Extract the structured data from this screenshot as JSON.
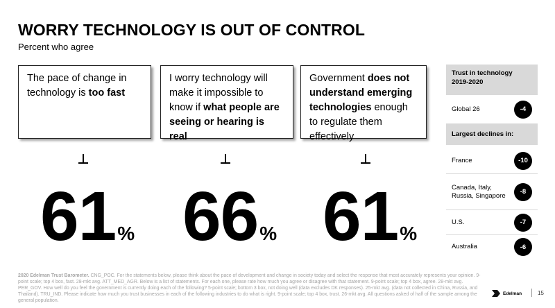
{
  "header": {
    "title": "WORRY TECHNOLOGY IS OUT OF CONTROL",
    "subtitle": "Percent who agree"
  },
  "cards": [
    {
      "pre": "The pace of change in technology is ",
      "bold": "too fast",
      "post": ""
    },
    {
      "pre": "I worry technology will make it impossible to know if ",
      "bold": "what people are seeing or hearing is real",
      "post": ""
    },
    {
      "pre": "Government ",
      "bold": "does not understand emerging technologies",
      "post": " enough to regulate them effectively"
    }
  ],
  "stats": [
    {
      "value": "61",
      "unit": "%"
    },
    {
      "value": "66",
      "unit": "%"
    },
    {
      "value": "61",
      "unit": "%"
    }
  ],
  "panel": {
    "header_line1": "Trust in technology",
    "header_line2": "2019-2020",
    "global": {
      "label": "Global 26",
      "value": "-4"
    },
    "declines_heading": "Largest declines in:",
    "declines": [
      {
        "label": "France",
        "value": "-10"
      },
      {
        "label": "Canada, Italy, Russia, Singapore",
        "value": "-8"
      },
      {
        "label": "U.S.",
        "value": "-7"
      },
      {
        "label": "Australia",
        "value": "-6"
      }
    ]
  },
  "footnote": {
    "source": "2020 Edelman Trust Barometer.",
    "text": " CNG_POC. For the statements below, please think about the pace of development and change in society today and select the response that most accurately represents your opinion. 9-point scale; top 4 box, fast. 28-mkt avg. ATT_MED_AGR. Below is a list of statements. For each one, please rate how much you agree or disagree with that statement. 9-point scale; top 4 box, agree. 28-mkt avg. PER_GOV. How well do you feel the government is currently doing each of the following? 5-point scale; bottom 3 box, not doing well (data excludes DK responses). 25-mkt avg. (data not collected in China, Russia, and Thailand). TRU_IND. Please indicate how much you trust businesses in each of the following industries to do what is right. 9-point scale; top 4 box, trust. 26-mkt avg. All questions asked of half of the sample among the general population."
  },
  "brand": {
    "name": "Edelman"
  },
  "page_number": "15"
}
